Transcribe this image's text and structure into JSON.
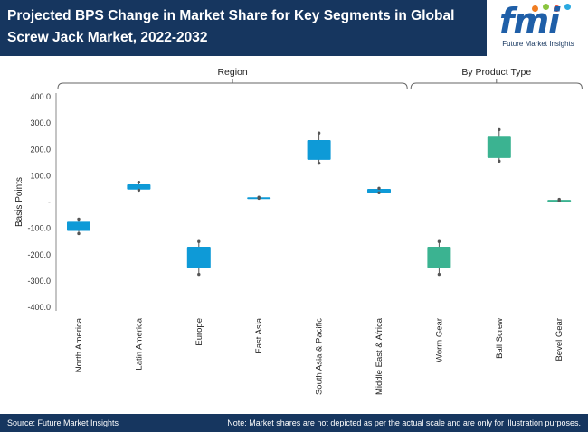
{
  "header": {
    "title": "Projected BPS Change in Market Share for Key Segments in Global Screw Jack Market, 2022-2032",
    "logo_text": "fmi",
    "logo_subtitle": "Future Market Insights"
  },
  "footer": {
    "source": "Source: Future Market Insights",
    "note": "Note: Market shares are not depicted as per the actual scale and are only for illustration purposes."
  },
  "colors": {
    "header_bg": "#16365f",
    "region_box": "#0e9ad7",
    "product_box": "#3bb391",
    "whisker": "#555555"
  },
  "chart_data": {
    "type": "boxplot",
    "title": "Projected BPS Change in Market Share for Key Segments in Global Screw Jack Market, 2022-2032",
    "ylabel": "Basis Points",
    "ylim": [
      -400,
      400
    ],
    "yticks": [
      {
        "value": 400,
        "label": "400.0"
      },
      {
        "value": 300,
        "label": "300.0"
      },
      {
        "value": 200,
        "label": "200.0"
      },
      {
        "value": 100,
        "label": "100.0"
      },
      {
        "value": 0,
        "label": "-"
      },
      {
        "value": -100,
        "label": "-100.0"
      },
      {
        "value": -200,
        "label": "-200.0"
      },
      {
        "value": -300,
        "label": "-300.0"
      },
      {
        "value": -400,
        "label": "-400.0"
      }
    ],
    "groups": [
      {
        "name": "Region",
        "start": 0,
        "end": 5
      },
      {
        "name": "By Product Type",
        "start": 6,
        "end": 8
      }
    ],
    "categories": [
      "North America",
      "Latin America",
      "Europe",
      "East Asia",
      "South Asia & Pacific",
      "Middle East & Africa",
      "Worm Gear",
      "Ball Screw",
      "Bevel Gear"
    ],
    "series": [
      {
        "category": "North America",
        "group": "Region",
        "min": -120,
        "q1": -110,
        "q3": -75,
        "max": -65
      },
      {
        "category": "Latin America",
        "group": "Region",
        "min": 45,
        "q1": 47,
        "q3": 67,
        "max": 75
      },
      {
        "category": "Europe",
        "group": "Region",
        "min": -275,
        "q1": -250,
        "q3": -170,
        "max": -150
      },
      {
        "category": "East Asia",
        "group": "Region",
        "min": 14,
        "q1": 14,
        "q3": 18,
        "max": 18
      },
      {
        "category": "South Asia & Pacific",
        "group": "Region",
        "min": 147,
        "q1": 160,
        "q3": 235,
        "max": 262
      },
      {
        "category": "Middle East & Africa",
        "group": "Region",
        "min": 35,
        "q1": 35,
        "q3": 50,
        "max": 52
      },
      {
        "category": "Worm Gear",
        "group": "By Product Type",
        "min": -275,
        "q1": -250,
        "q3": -170,
        "max": -150
      },
      {
        "category": "Ball Screw",
        "group": "By Product Type",
        "min": 155,
        "q1": 167,
        "q3": 248,
        "max": 275
      },
      {
        "category": "Bevel Gear",
        "group": "By Product Type",
        "min": 4,
        "q1": 6,
        "q3": 8,
        "max": 10
      }
    ]
  }
}
